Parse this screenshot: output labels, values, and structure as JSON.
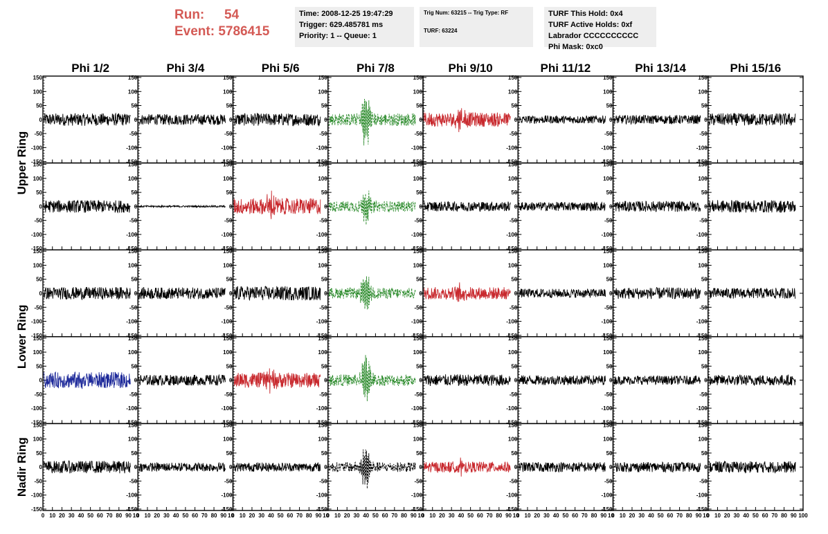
{
  "header": {
    "run_label": "Run:",
    "run_value": "54",
    "event_label": "Event:",
    "event_value": "5786415",
    "time_line": "Time: 2008-12-25 19:47:29",
    "trigger_line": "Trigger: 629.485781 ms",
    "priority_line": "Priority: 1 -- Queue: 1",
    "trig_num_line": "Trig Num: 63215 -- Trig Type: RF",
    "turf_line": "TURF: 63224",
    "turf_this_hold": "TURF This Hold: 0x4",
    "turf_active_holds": "TURF Active Holds: 0xf",
    "labrador_line": "Labrador CCCCCCCCCC",
    "phi_mask_line": "Phi Mask: 0xc0"
  },
  "chart_data": {
    "type": "line",
    "title": "",
    "columns": [
      "Phi 1/2",
      "Phi 3/4",
      "Phi 5/6",
      "Phi 7/8",
      "Phi 9/10",
      "Phi 11/12",
      "Phi 13/14",
      "Phi 15/16"
    ],
    "ring_labels": [
      "Upper Ring",
      "Lower Ring",
      "Nadir Ring"
    ],
    "ring_row_spans": [
      [
        0,
        1
      ],
      [
        2,
        3
      ],
      [
        4,
        4
      ]
    ],
    "xlim": [
      0,
      100
    ],
    "ylim": [
      -155,
      155
    ],
    "x_ticks": [
      0,
      10,
      20,
      30,
      40,
      50,
      60,
      70,
      80,
      90,
      100
    ],
    "x_tick_labels_first": [
      "0",
      "10",
      "20",
      "30",
      "40",
      "50",
      "60",
      "70",
      "80",
      "90",
      "100"
    ],
    "x_tick_labels_other": [
      "0",
      "10",
      "20",
      "30",
      "40",
      "50",
      "60",
      "70",
      "80",
      "90",
      "10"
    ],
    "y_ticks": [
      -150,
      -100,
      -50,
      0,
      50,
      100,
      150
    ],
    "y_tick_labels": [
      "-150",
      "-100",
      "-50",
      "0",
      "50",
      "100",
      "150"
    ],
    "x_range_samples": [
      1,
      92
    ],
    "colors": {
      "black": "#000000",
      "red": "#c8282d",
      "green": "#2a8a2a",
      "blue": "#1e2a9a"
    },
    "panels": [
      [
        {
          "color": "black",
          "amp": 14,
          "pulse": 0,
          "style": "solid"
        },
        {
          "color": "black",
          "amp": 12,
          "pulse": 0,
          "style": "solid"
        },
        {
          "color": "black",
          "amp": 14,
          "pulse": 0,
          "style": "solid"
        },
        {
          "color": "green",
          "amp": 14,
          "pulse": 85,
          "style": "dashed"
        },
        {
          "color": "red",
          "amp": 16,
          "pulse": 40,
          "style": "solid"
        },
        {
          "color": "black",
          "amp": 9,
          "pulse": 0,
          "style": "solid"
        },
        {
          "color": "black",
          "amp": 10,
          "pulse": 0,
          "style": "solid"
        },
        {
          "color": "black",
          "amp": 14,
          "pulse": 0,
          "style": "solid"
        }
      ],
      [
        {
          "color": "black",
          "amp": 14,
          "pulse": 0,
          "style": "solid"
        },
        {
          "color": "black",
          "amp": 2,
          "pulse": 0,
          "style": "solid"
        },
        {
          "color": "red",
          "amp": 18,
          "pulse": 35,
          "style": "solid"
        },
        {
          "color": "green",
          "amp": 12,
          "pulse": 70,
          "style": "dashed"
        },
        {
          "color": "black",
          "amp": 11,
          "pulse": 0,
          "style": "solid"
        },
        {
          "color": "black",
          "amp": 10,
          "pulse": 0,
          "style": "solid"
        },
        {
          "color": "black",
          "amp": 12,
          "pulse": 0,
          "style": "solid"
        },
        {
          "color": "black",
          "amp": 14,
          "pulse": 0,
          "style": "solid"
        }
      ],
      [
        {
          "color": "black",
          "amp": 14,
          "pulse": 0,
          "style": "solid"
        },
        {
          "color": "black",
          "amp": 13,
          "pulse": 0,
          "style": "solid"
        },
        {
          "color": "black",
          "amp": 16,
          "pulse": 0,
          "style": "solid"
        },
        {
          "color": "green",
          "amp": 12,
          "pulse": 75,
          "style": "dashed"
        },
        {
          "color": "red",
          "amp": 14,
          "pulse": 25,
          "style": "solid"
        },
        {
          "color": "black",
          "amp": 10,
          "pulse": 0,
          "style": "solid"
        },
        {
          "color": "black",
          "amp": 13,
          "pulse": 0,
          "style": "solid"
        },
        {
          "color": "black",
          "amp": 12,
          "pulse": 0,
          "style": "solid"
        }
      ],
      [
        {
          "color": "blue",
          "amp": 18,
          "pulse": 20,
          "style": "solid"
        },
        {
          "color": "black",
          "amp": 12,
          "pulse": 0,
          "style": "solid"
        },
        {
          "color": "red",
          "amp": 17,
          "pulse": 35,
          "style": "solid"
        },
        {
          "color": "green",
          "amp": 13,
          "pulse": 90,
          "style": "dashed"
        },
        {
          "color": "black",
          "amp": 13,
          "pulse": 0,
          "style": "solid"
        },
        {
          "color": "black",
          "amp": 11,
          "pulse": 0,
          "style": "solid"
        },
        {
          "color": "black",
          "amp": 10,
          "pulse": 0,
          "style": "solid"
        },
        {
          "color": "black",
          "amp": 12,
          "pulse": 0,
          "style": "solid"
        }
      ],
      [
        {
          "color": "black",
          "amp": 14,
          "pulse": 0,
          "style": "solid"
        },
        {
          "color": "black",
          "amp": 10,
          "pulse": 0,
          "style": "solid"
        },
        {
          "color": "black",
          "amp": 10,
          "pulse": 0,
          "style": "solid"
        },
        {
          "color": "black",
          "amp": 11,
          "pulse": 80,
          "style": "dashed"
        },
        {
          "color": "red",
          "amp": 12,
          "pulse": 25,
          "style": "solid"
        },
        {
          "color": "black",
          "amp": 11,
          "pulse": 0,
          "style": "solid"
        },
        {
          "color": "black",
          "amp": 11,
          "pulse": 0,
          "style": "solid"
        },
        {
          "color": "black",
          "amp": 13,
          "pulse": 0,
          "style": "solid"
        }
      ]
    ]
  }
}
